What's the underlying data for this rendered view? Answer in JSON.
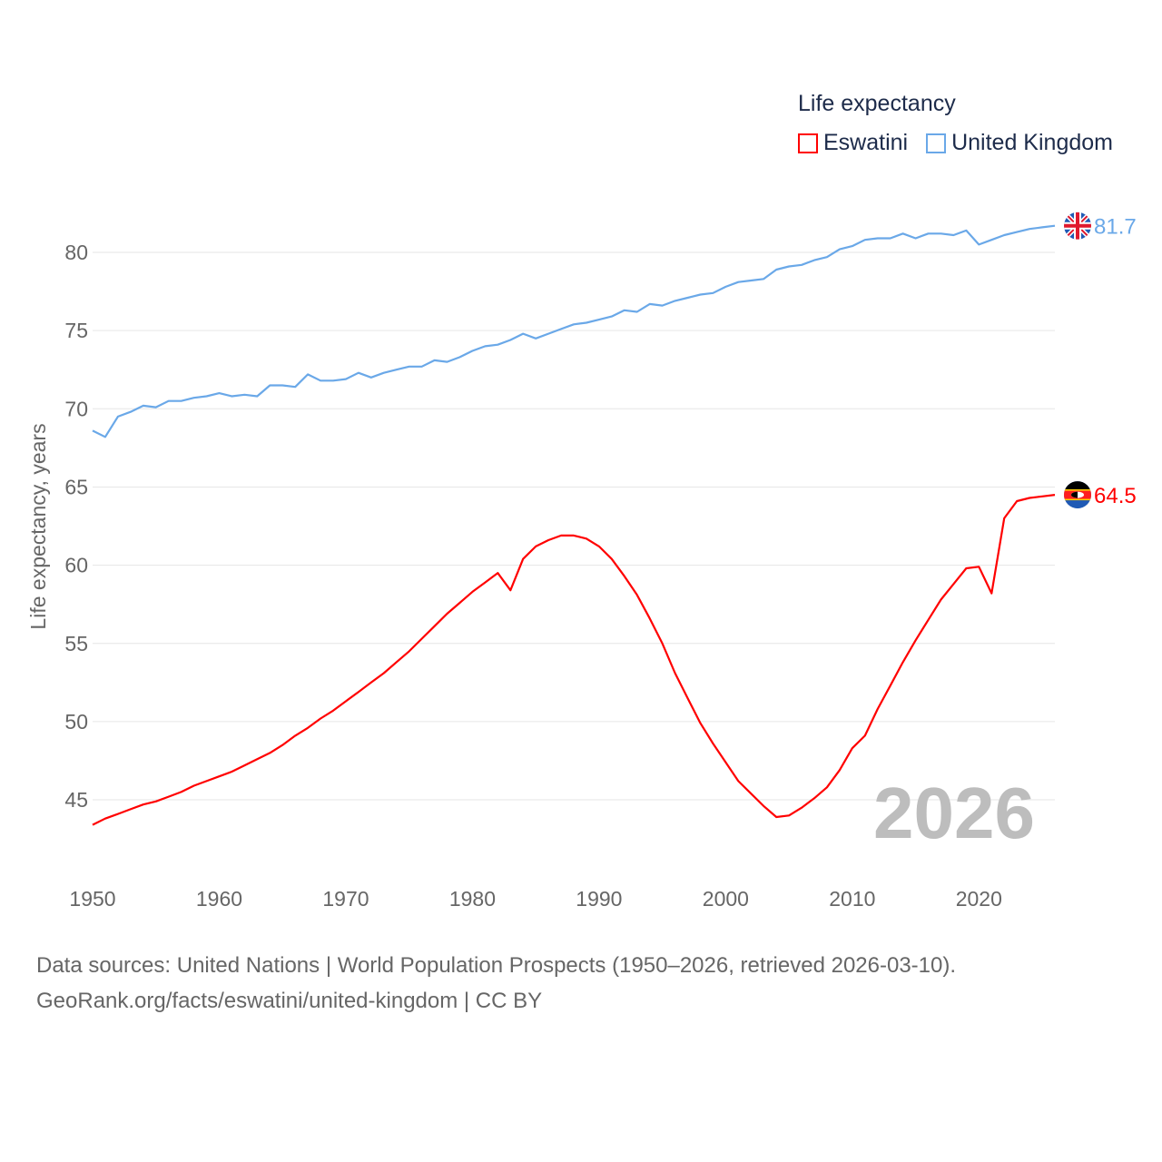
{
  "chart_data": {
    "type": "line",
    "title": "Life expectancy",
    "xlabel": "",
    "ylabel": "Life expectancy, years",
    "xlim": [
      1950,
      2026
    ],
    "ylim": [
      42,
      83
    ],
    "xticks": [
      1950,
      1960,
      1970,
      1980,
      1990,
      2000,
      2010,
      2020
    ],
    "yticks": [
      45,
      50,
      55,
      60,
      65,
      70,
      75,
      80
    ],
    "grid": true,
    "legend_position": "top-right",
    "x": [
      1950,
      1951,
      1952,
      1953,
      1954,
      1955,
      1956,
      1957,
      1958,
      1959,
      1960,
      1961,
      1962,
      1963,
      1964,
      1965,
      1966,
      1967,
      1968,
      1969,
      1970,
      1971,
      1972,
      1973,
      1974,
      1975,
      1976,
      1977,
      1978,
      1979,
      1980,
      1981,
      1982,
      1983,
      1984,
      1985,
      1986,
      1987,
      1988,
      1989,
      1990,
      1991,
      1992,
      1993,
      1994,
      1995,
      1996,
      1997,
      1998,
      1999,
      2000,
      2001,
      2002,
      2003,
      2004,
      2005,
      2006,
      2007,
      2008,
      2009,
      2010,
      2011,
      2012,
      2013,
      2014,
      2015,
      2016,
      2017,
      2018,
      2019,
      2020,
      2021,
      2022,
      2023,
      2024,
      2025,
      2026
    ],
    "series": [
      {
        "name": "Eswatini",
        "color": "#ff0000",
        "end_label": "64.5",
        "values": [
          43.4,
          43.8,
          44.1,
          44.4,
          44.7,
          44.9,
          45.2,
          45.5,
          45.9,
          46.2,
          46.5,
          46.8,
          47.2,
          47.6,
          48.0,
          48.5,
          49.1,
          49.6,
          50.2,
          50.7,
          51.3,
          51.9,
          52.5,
          53.1,
          53.8,
          54.5,
          55.3,
          56.1,
          56.9,
          57.6,
          58.3,
          58.9,
          59.5,
          58.4,
          60.4,
          61.2,
          61.6,
          61.9,
          61.9,
          61.7,
          61.2,
          60.4,
          59.3,
          58.1,
          56.6,
          55.0,
          53.1,
          51.5,
          49.9,
          48.6,
          47.4,
          46.2,
          45.4,
          44.6,
          43.9,
          44.0,
          44.5,
          45.1,
          45.8,
          46.9,
          48.3,
          49.1,
          50.8,
          52.3,
          53.8,
          55.2,
          56.5,
          57.8,
          58.8,
          59.8,
          59.9,
          58.2,
          63.0,
          64.1,
          64.3,
          64.4,
          64.5
        ]
      },
      {
        "name": "United Kingdom",
        "color": "#6aa8e8",
        "end_label": "81.7",
        "values": [
          68.6,
          68.2,
          69.5,
          69.8,
          70.2,
          70.1,
          70.5,
          70.5,
          70.7,
          70.8,
          71.0,
          70.8,
          70.9,
          70.8,
          71.5,
          71.5,
          71.4,
          72.2,
          71.8,
          71.8,
          71.9,
          72.3,
          72.0,
          72.3,
          72.5,
          72.7,
          72.7,
          73.1,
          73.0,
          73.3,
          73.7,
          74.0,
          74.1,
          74.4,
          74.8,
          74.5,
          74.8,
          75.1,
          75.4,
          75.5,
          75.7,
          75.9,
          76.3,
          76.2,
          76.7,
          76.6,
          76.9,
          77.1,
          77.3,
          77.4,
          77.8,
          78.1,
          78.2,
          78.3,
          78.9,
          79.1,
          79.2,
          79.5,
          79.7,
          80.2,
          80.4,
          80.8,
          80.9,
          80.9,
          81.2,
          80.9,
          81.2,
          81.2,
          81.1,
          81.4,
          80.5,
          80.8,
          81.1,
          81.3,
          81.5,
          81.6,
          81.7
        ]
      }
    ],
    "current_year": "2026"
  },
  "footer": {
    "line1": "Data sources: United Nations | World Population Prospects (1950–2026, retrieved 2026-03-10).",
    "line2": "GeoRank.org/facts/eswatini/united-kingdom | CC BY"
  }
}
